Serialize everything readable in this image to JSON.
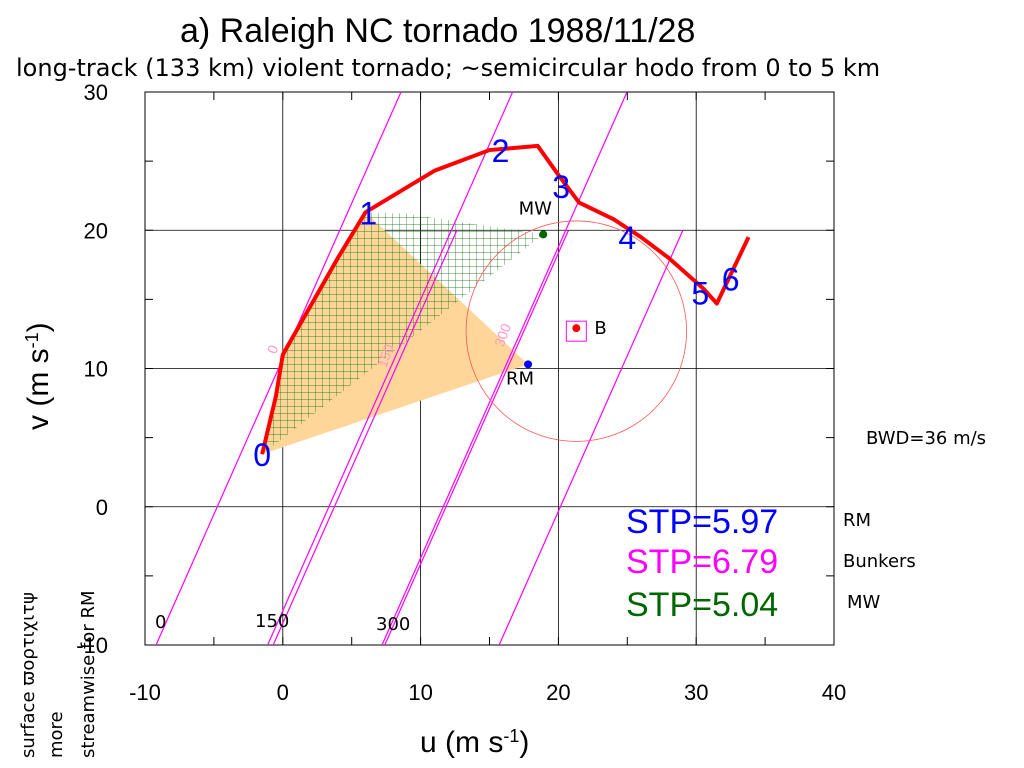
{
  "title": "a)  Raleigh NC tornado 1988/11/28",
  "subtitle": "long-track (133 km) violent tornado; ~semicircular hodo from 0 to 5 km",
  "chart_data": {
    "type": "line",
    "xlabel": "u (m s",
    "xlabel_sup": "-1",
    "xlabel_end": ")",
    "ylabel": "v (m s",
    "ylabel_sup": "-1",
    "ylabel_end": ")",
    "xlim": [
      -10,
      40
    ],
    "ylim": [
      -10,
      30
    ],
    "xticks": [
      -10,
      0,
      10,
      20,
      30,
      40
    ],
    "yticks": [
      -10,
      0,
      10,
      20,
      30
    ],
    "grid": true,
    "hodograph": {
      "name": "hodograph",
      "color": "#ff0000",
      "u": [
        -1.5,
        -0.5,
        0,
        2,
        4,
        6,
        8,
        11,
        15,
        18.5,
        20,
        21.5,
        24,
        26,
        28,
        30.5,
        31.5,
        32.5,
        33.8
      ],
      "v": [
        3.8,
        8,
        11,
        14.5,
        18,
        21.3,
        22.5,
        24.3,
        25.8,
        26.1,
        24,
        22,
        20.8,
        19.5,
        18,
        15.8,
        14.7,
        16.8,
        19.5
      ]
    },
    "height_labels": [
      {
        "text": "0",
        "u": -1.5,
        "v": 3.8,
        "color": "#0000ff"
      },
      {
        "text": "1",
        "u": 6.2,
        "v": 21.3,
        "color": "#0000ff"
      },
      {
        "text": "2",
        "u": 15.8,
        "v": 25.8,
        "color": "#0000ff"
      },
      {
        "text": "3",
        "u": 20.2,
        "v": 23.2,
        "color": "#0000ff"
      },
      {
        "text": "4",
        "u": 25.0,
        "v": 19.5,
        "color": "#0000ff"
      },
      {
        "text": "5",
        "u": 30.3,
        "v": 15.5,
        "color": "#0000ff"
      },
      {
        "text": "6",
        "u": 32.5,
        "v": 16.5,
        "color": "#0000ff"
      }
    ],
    "storm_motions": [
      {
        "name": "MW",
        "u": 18.9,
        "v": 19.7,
        "color": "#006600",
        "label": "MW"
      },
      {
        "name": "RM",
        "u": 17.8,
        "v": 10.3,
        "color": "#0000ff",
        "label": "RM"
      },
      {
        "name": "B",
        "u": 21.3,
        "v": 12.7,
        "color": "#ff0000",
        "label": "B"
      }
    ],
    "bunkers_circle": {
      "u": 21.3,
      "v": 12.7,
      "radius": 8.0,
      "color": "#ff5555"
    },
    "srh_lines": {
      "slope": 2.25,
      "u_intercepts": [
        -9.2,
        -1.1,
        7.2
      ],
      "color": "#ff00ff",
      "labels": [
        "0",
        "150",
        "300"
      ]
    },
    "helicity_area_labels": [
      "0",
      "150",
      "300"
    ],
    "bwd_label": "BWD=36 m/s",
    "stp": [
      {
        "text": "STP=5.97",
        "color": "#0000ff",
        "note": "RM"
      },
      {
        "text": "STP=6.79",
        "color": "#ff00ff",
        "note": "Bunkers"
      },
      {
        "text": "STP=5.04",
        "color": "#006600",
        "note": "MW"
      }
    ],
    "axis_value_labels": [
      "0",
      "150",
      "300"
    ]
  },
  "side_text": {
    "line1": "surface ϖορτιχιτψ",
    "line2": "more",
    "line3": "streamwise for RM"
  },
  "colors": {
    "shade": "#ffd699",
    "hatch": "#006600",
    "srh": "#ff00ff",
    "grid": "#000000"
  }
}
